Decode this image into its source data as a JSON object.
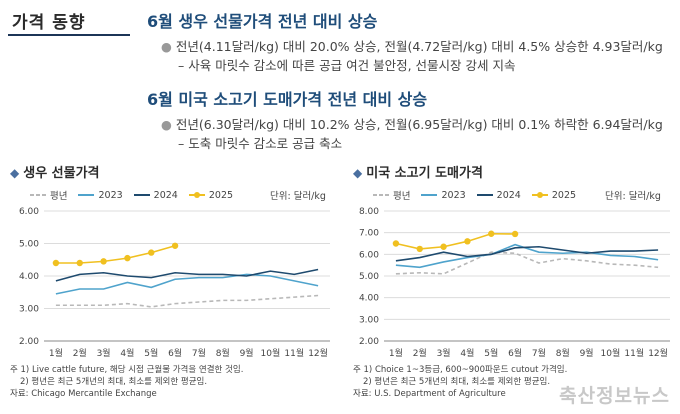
{
  "section_title": "가격 동향",
  "headline1": "6월 생우 선물가격 전년 대비 상승",
  "bullet1": "전년(4.11달러/kg) 대비 20.0% 상승, 전월(4.72달러/kg) 대비 4.5% 상승한 4.93달러/kg",
  "sub1": "– 사육 마릿수 감소에 따른 공급 여건 불안정, 선물시장 강세 지속",
  "headline2": "6월 미국 소고기 도매가격 전년 대비 상승",
  "bullet2": "전년(6.30달러/kg) 대비 10.2% 상승, 전월(6.95달러/kg) 대비 0.1% 하락한 6.94달러/kg",
  "sub2": "– 도축 마릿수 감소로 공급 축소",
  "charts": [
    {
      "title": "생우 선물가격",
      "unit": "단위: 달러/kg",
      "note1": "주 1) Live cattle future, 해당 시점 근월물 가격을 연결한 것임.",
      "note2": "2) 평년은 최근 5개년의 최대, 최소를 제외한 평균임.",
      "source": "자료: Chicago Mercantile Exchange"
    },
    {
      "title": "미국 소고기 도매가격",
      "unit": "단위: 달러/kg",
      "note1": "주 1) Choice 1~3등급, 600~900파운드 cutout 가격임.",
      "note2": "2) 평년은 최근 5개년의 최대, 최소를 제외한 평균임.",
      "source": "자료: U.S. Department of Agriculture"
    }
  ],
  "legend": [
    "평년",
    "2023",
    "2024",
    "2025"
  ],
  "colors": {
    "avg": "#b8b8b8",
    "y2023": "#4fa3cc",
    "y2024": "#1e4a6e",
    "y2025": "#f0c020"
  },
  "watermark": "축산정보뉴스",
  "chart_data": [
    {
      "type": "line",
      "title": "생우 선물가격",
      "categories": [
        "1월",
        "2월",
        "3월",
        "4월",
        "5월",
        "6월",
        "7월",
        "8월",
        "9월",
        "10월",
        "11월",
        "12월"
      ],
      "yticks": [
        "2.00",
        "3.00",
        "4.00",
        "5.00",
        "6.00"
      ],
      "ylim": [
        2,
        6
      ],
      "grid": true,
      "series": [
        {
          "name": "평년",
          "values": [
            3.1,
            3.1,
            3.1,
            3.15,
            3.05,
            3.15,
            3.2,
            3.25,
            3.25,
            3.3,
            3.35,
            3.4
          ]
        },
        {
          "name": "2023",
          "values": [
            3.45,
            3.6,
            3.6,
            3.8,
            3.65,
            3.9,
            3.95,
            3.95,
            4.05,
            4.0,
            3.85,
            3.7
          ]
        },
        {
          "name": "2024",
          "values": [
            3.85,
            4.05,
            4.1,
            4.0,
            3.95,
            4.1,
            4.05,
            4.05,
            4.0,
            4.15,
            4.05,
            4.2
          ]
        },
        {
          "name": "2025",
          "values": [
            4.4,
            4.4,
            4.45,
            4.55,
            4.72,
            4.93,
            null,
            null,
            null,
            null,
            null,
            null
          ]
        }
      ]
    },
    {
      "type": "line",
      "title": "미국 소고기 도매가격",
      "categories": [
        "1월",
        "2월",
        "3월",
        "4월",
        "5월",
        "6월",
        "7월",
        "8월",
        "9월",
        "10월",
        "11월",
        "12월"
      ],
      "yticks": [
        "2.00",
        "3.00",
        "4.00",
        "5.00",
        "6.00",
        "7.00",
        "8.00"
      ],
      "ylim": [
        2,
        8
      ],
      "grid": true,
      "series": [
        {
          "name": "평년",
          "values": [
            5.1,
            5.15,
            5.1,
            5.6,
            6.1,
            6.05,
            5.6,
            5.8,
            5.7,
            5.55,
            5.5,
            5.4
          ]
        },
        {
          "name": "2023",
          "values": [
            5.5,
            5.4,
            5.65,
            5.85,
            6.0,
            6.45,
            6.1,
            6.05,
            6.1,
            5.95,
            5.9,
            5.75
          ]
        },
        {
          "name": "2024",
          "values": [
            5.7,
            5.85,
            6.1,
            5.9,
            6.0,
            6.3,
            6.35,
            6.2,
            6.05,
            6.15,
            6.15,
            6.2
          ]
        },
        {
          "name": "2025",
          "values": [
            6.5,
            6.25,
            6.35,
            6.6,
            6.95,
            6.94,
            null,
            null,
            null,
            null,
            null,
            null
          ]
        }
      ]
    }
  ]
}
